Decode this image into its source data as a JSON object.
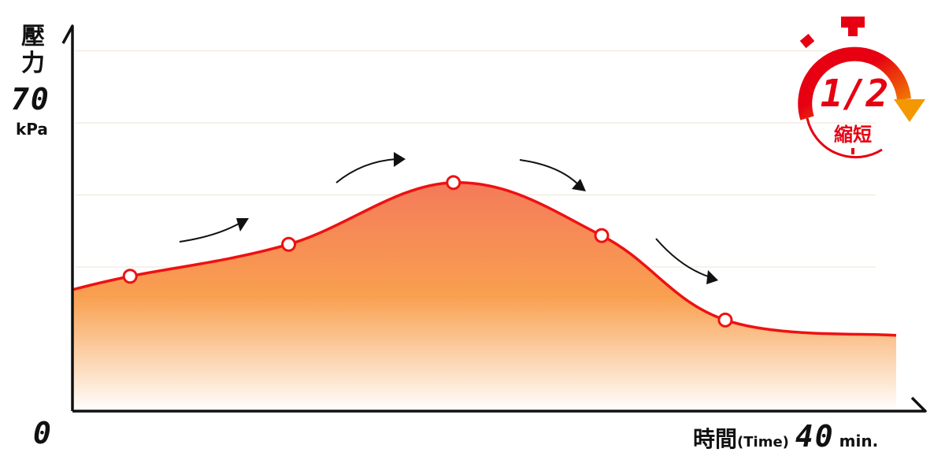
{
  "chart_data": {
    "type": "area",
    "ylabel": "壓力",
    "y_max_label": "70",
    "y_unit": "kPa",
    "x_min_label": "0",
    "xlabel": "時間",
    "xlabel_en": "(Time)",
    "x_max_label": "40",
    "x_unit": "min.",
    "xlim": [
      0,
      40
    ],
    "ylim": [
      0,
      70
    ],
    "grid": true,
    "series": [
      {
        "x": [
          0,
          2.8,
          10.5,
          18.5,
          25.7,
          31.7,
          40
        ],
        "y": [
          23.6,
          26.2,
          32.4,
          44.4,
          34.1,
          17.7,
          14.7
        ],
        "marked_points": [
          1,
          2,
          3,
          4,
          5
        ]
      }
    ],
    "colors": {
      "line": "#ee1111",
      "fill_top": "#f47a5a",
      "fill_mid": "#f9a050",
      "fill_bottom": "#ffffff",
      "grid": "#f1ede0"
    }
  },
  "badge": {
    "fraction": "1/2",
    "text": "縮短",
    "icon": "stopwatch-icon",
    "color": "#e60012",
    "arrow_color": "#f39800"
  }
}
